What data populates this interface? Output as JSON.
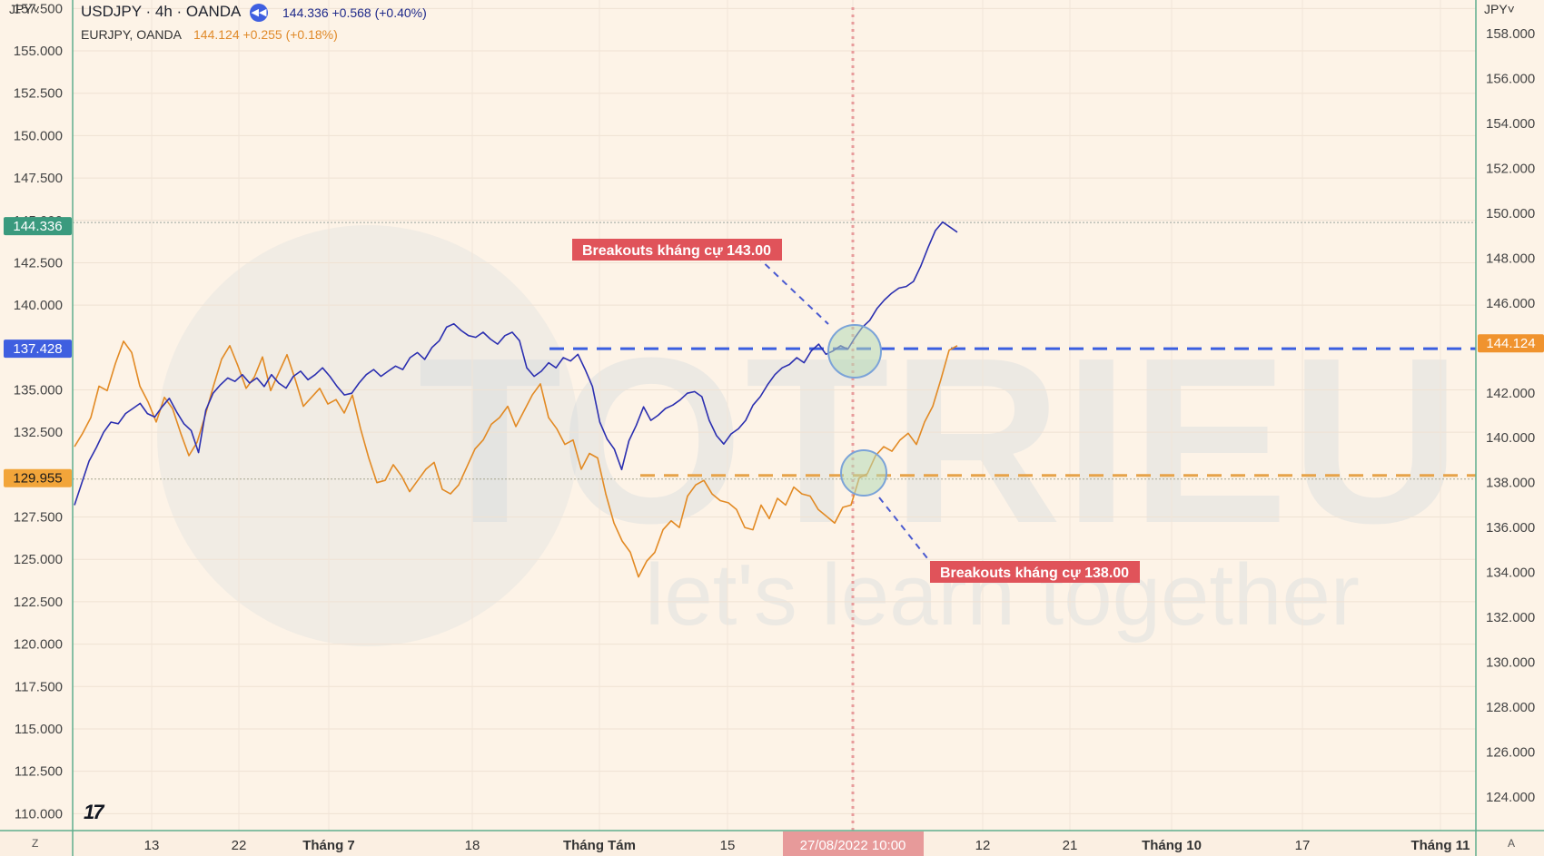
{
  "header": {
    "symbol": "USDJPY · 4h · OANDA",
    "replay_icon": "rewind-icon",
    "price_change": "144.336 +0.568 (+0.40%)",
    "overlay_symbol": "EURJPY, OANDA",
    "overlay_change": "144.124 +0.255 (+0.18%)"
  },
  "units": {
    "left": "JPY˅",
    "right": "JPY˅"
  },
  "corners": {
    "left": "Z",
    "right": "A"
  },
  "watermark": {
    "brand": "TOTRIEU",
    "slogan": "let's learn together"
  },
  "colors": {
    "usdjpy": "#2b2fb0",
    "eurjpy": "#e28a24",
    "label_bg": "#e0535a",
    "current_price_bg": "#3a9a7e",
    "circle_fill": "#b5d9b7",
    "circle_stroke": "#7ba3d8"
  },
  "chart_data": {
    "type": "line",
    "x_labels": [
      "13",
      "22",
      "Tháng 7",
      "18",
      "Tháng Tám",
      "15",
      "27/08/2022 10:00",
      "12",
      "21",
      "Tháng 10",
      "17",
      "Tháng 11"
    ],
    "cursor_date": "27/08/2022 10:00",
    "left_axis": {
      "ticks": [
        "157.500",
        "155.000",
        "152.500",
        "150.000",
        "147.500",
        "145.000",
        "142.500",
        "140.000",
        "135.000",
        "132.500",
        "127.500",
        "125.000",
        "122.500",
        "120.000",
        "117.500",
        "115.000",
        "112.500",
        "110.000"
      ],
      "ylim": [
        109,
        158
      ]
    },
    "right_axis": {
      "ticks": [
        "158.000",
        "156.000",
        "154.000",
        "152.000",
        "150.000",
        "148.000",
        "146.000",
        "142.000",
        "140.000",
        "138.000",
        "136.000",
        "134.000",
        "132.000",
        "130.000",
        "128.000",
        "126.000",
        "124.000"
      ],
      "ylim": [
        122.5,
        159.5
      ]
    },
    "series": [
      {
        "name": "USDJPY",
        "axis": "left",
        "last_value": 144.336,
        "values": [
          128.2,
          129.5,
          130.8,
          131.6,
          132.5,
          133.1,
          133.0,
          133.6,
          133.9,
          134.2,
          133.6,
          133.4,
          134.0,
          134.5,
          133.7,
          133.0,
          132.6,
          131.3,
          133.8,
          134.8,
          135.3,
          135.7,
          135.5,
          135.9,
          135.4,
          135.7,
          135.2,
          135.9,
          135.4,
          135.1,
          135.8,
          136.1,
          135.6,
          135.9,
          136.3,
          135.8,
          135.2,
          134.7,
          134.8,
          135.4,
          135.9,
          136.2,
          135.8,
          136.1,
          136.4,
          136.2,
          136.9,
          137.2,
          136.8,
          137.5,
          137.9,
          138.7,
          138.9,
          138.5,
          138.2,
          138.1,
          138.4,
          138.0,
          137.7,
          138.2,
          138.4,
          137.9,
          136.3,
          135.8,
          136.1,
          136.6,
          136.3,
          136.9,
          136.7,
          137.1,
          136.2,
          135.2,
          133.1,
          132.1,
          131.5,
          130.3,
          132.0,
          132.9,
          134.0,
          133.2,
          133.5,
          133.9,
          134.1,
          134.4,
          134.8,
          134.9,
          134.6,
          133.2,
          132.3,
          131.8,
          132.4,
          132.7,
          133.2,
          134.1,
          134.6,
          135.3,
          135.9,
          136.3,
          136.5,
          136.9,
          136.6,
          137.3,
          137.7,
          137.1,
          137.3,
          137.6,
          137.4,
          138.1,
          138.7,
          139.1,
          139.8,
          140.3,
          140.7,
          141.0,
          141.1,
          141.4,
          142.3,
          143.4,
          144.4,
          144.9,
          144.6,
          144.3
        ]
      },
      {
        "name": "EURJPY",
        "axis": "right",
        "last_value": 144.124,
        "values": [
          139.6,
          140.2,
          140.9,
          142.3,
          142.1,
          143.3,
          144.3,
          143.8,
          142.3,
          141.6,
          140.7,
          141.8,
          141.3,
          140.2,
          139.2,
          139.8,
          141.0,
          142.3,
          143.5,
          144.1,
          143.2,
          142.2,
          142.7,
          143.6,
          142.1,
          142.9,
          143.7,
          142.6,
          141.4,
          141.8,
          142.2,
          141.5,
          141.7,
          141.1,
          141.9,
          140.4,
          139.1,
          138.0,
          138.1,
          138.8,
          138.3,
          137.6,
          138.1,
          138.6,
          138.9,
          137.7,
          137.5,
          137.9,
          138.7,
          139.5,
          139.9,
          140.6,
          140.9,
          141.4,
          140.5,
          141.2,
          141.9,
          142.4,
          140.9,
          140.4,
          139.7,
          139.9,
          138.6,
          139.3,
          139.1,
          137.5,
          136.2,
          135.4,
          134.9,
          133.8,
          134.5,
          134.9,
          135.9,
          136.3,
          136.0,
          137.4,
          137.9,
          138.1,
          137.5,
          137.2,
          137.1,
          136.8,
          136.0,
          135.9,
          137.0,
          136.4,
          137.3,
          137.0,
          137.8,
          137.5,
          137.4,
          136.8,
          136.5,
          136.2,
          136.9,
          137.0,
          138.2,
          138.4,
          139.2,
          139.6,
          139.4,
          139.9,
          140.2,
          139.7,
          140.7,
          141.4,
          142.6,
          143.9,
          144.1
        ]
      }
    ],
    "reference_lines": [
      {
        "axis": "left",
        "value": 137.428,
        "label": "137.428"
      },
      {
        "axis": "left",
        "value": 129.955,
        "label": "129.955"
      }
    ],
    "annotations": [
      {
        "text": "Breakouts kháng cự 143.00"
      },
      {
        "text": "Breakouts kháng cự 138.00"
      }
    ],
    "price_tags": [
      {
        "axis": "left",
        "value": 144.336,
        "label": "144.336"
      },
      {
        "axis": "right",
        "value": 144.124,
        "label": "144.124"
      }
    ]
  }
}
